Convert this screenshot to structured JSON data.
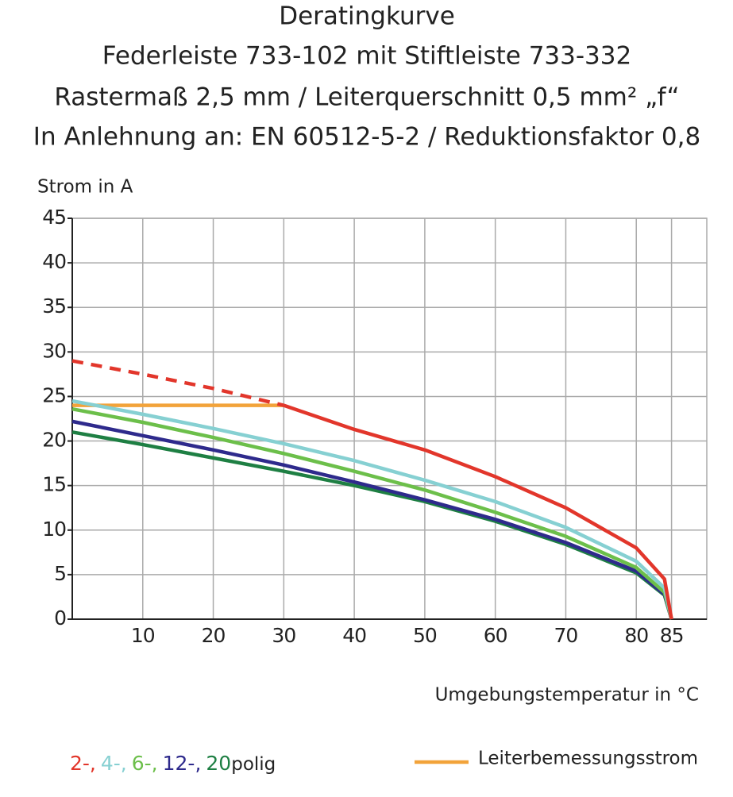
{
  "chart_data": {
    "type": "line",
    "title_lines": [
      "Deratingkurve",
      "Federleiste 733-102 mit Stiftleiste 733-332",
      "Rastermaß 2,5 mm / Leiterquerschnitt 0,5 mm² „f“",
      "In Anlehnung an: EN 60512-5-2 / Reduktionsfaktor 0,8"
    ],
    "y_label": "Strom in A",
    "x_label": "Umgebungstemperatur in °C",
    "x": [
      0,
      10,
      20,
      30,
      40,
      50,
      60,
      70,
      80,
      84,
      85
    ],
    "series": [
      {
        "name": "2-,",
        "color": "#e2362b",
        "values": [
          null,
          null,
          null,
          24,
          21.3,
          19,
          16,
          12.5,
          8,
          4.5,
          0
        ],
        "dashed_values": [
          29,
          27.5,
          25.9,
          24,
          null,
          null,
          null,
          null,
          null,
          null,
          null
        ]
      },
      {
        "name": "4-,",
        "color": "#86d0d2",
        "values": [
          24.5,
          23,
          21.4,
          19.7,
          17.8,
          15.6,
          13.2,
          10.3,
          6.5,
          3.5,
          0
        ]
      },
      {
        "name": "6-,",
        "color": "#6cbf4a",
        "values": [
          23.6,
          22.1,
          20.4,
          18.6,
          16.6,
          14.5,
          12,
          9.3,
          5.8,
          3,
          0
        ]
      },
      {
        "name": "12-,",
        "color": "#2e2a8c",
        "values": [
          22.2,
          20.6,
          19,
          17.3,
          15.4,
          13.4,
          11.2,
          8.6,
          5.4,
          2.8,
          0
        ]
      },
      {
        "name": "20",
        "color": "#1e7f43",
        "values": [
          21,
          19.6,
          18.1,
          16.6,
          15,
          13.2,
          11,
          8.4,
          5.2,
          2.7,
          0
        ]
      }
    ],
    "legend_suffix": "polig",
    "rated_current": {
      "name": "Leiterbemessungsstrom",
      "color": "#f2a33a",
      "values": [
        24,
        24,
        24,
        24,
        null,
        null,
        null,
        null,
        null,
        null,
        null
      ]
    },
    "xlim": [
      0,
      90
    ],
    "xticks": [
      10,
      20,
      30,
      40,
      50,
      60,
      70,
      80,
      85
    ],
    "ylim": [
      0,
      45
    ],
    "yticks": [
      0,
      5,
      10,
      15,
      20,
      25,
      30,
      35,
      40,
      45
    ],
    "grid": true
  }
}
